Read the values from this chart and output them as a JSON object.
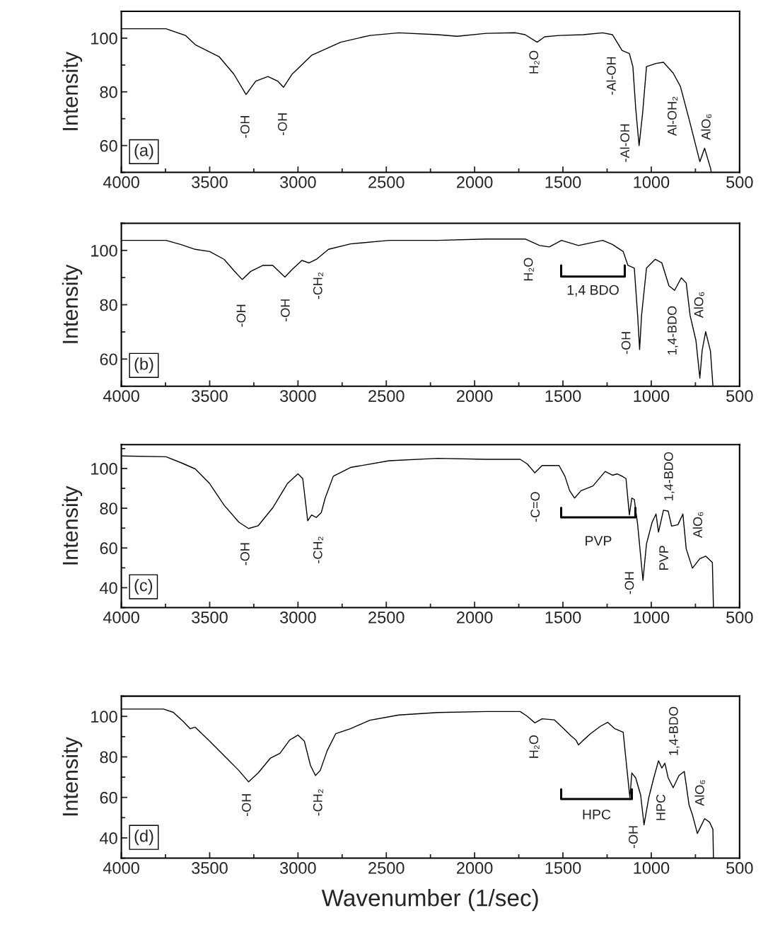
{
  "chart_data": [
    {
      "type": "line",
      "ylabel": "Intensity",
      "xlim": [
        4000,
        500
      ],
      "ylim": [
        50,
        110
      ],
      "xticks": [
        4000,
        3500,
        3000,
        2500,
        2000,
        1500,
        1000,
        500
      ],
      "yticks": [
        60,
        80,
        100
      ],
      "x": [
        4000,
        3747,
        3637,
        3582,
        3445,
        3363,
        3294,
        3239,
        3170,
        3115,
        3082,
        3033,
        2923,
        2758,
        2593,
        2429,
        2209,
        2099,
        1934,
        1769,
        1714,
        1659,
        1646,
        1604,
        1522,
        1385,
        1275,
        1220,
        1165,
        1124,
        1104,
        1088,
        1069,
        1049,
        1027,
        973,
        931,
        876,
        835,
        780,
        725,
        698,
        665,
        660
      ],
      "series": [
        {
          "color": "#000000",
          "values": [
            103.5,
            103.5,
            101,
            97.6,
            93,
            86.6,
            79,
            84,
            85.7,
            84,
            81.7,
            86.6,
            93.6,
            98.5,
            101,
            102,
            101.3,
            100.7,
            101.8,
            102,
            101.3,
            99,
            98.5,
            100.5,
            101,
            101.3,
            102,
            101.3,
            95.4,
            94.3,
            89.4,
            73.8,
            60,
            72,
            89.4,
            90.6,
            91,
            87,
            82,
            68.3,
            54,
            59,
            51.7,
            50
          ]
        }
      ],
      "annotations": [
        "(a)",
        "-OH",
        "-OH",
        "H₂O",
        "-Al-OH",
        "-Al-OH",
        "Al-OH₂",
        "AlO₆"
      ]
    },
    {
      "type": "line",
      "ylabel": "Intensity",
      "xlim": [
        4000,
        500
      ],
      "ylim": [
        50,
        110
      ],
      "xticks": [
        4000,
        3500,
        3000,
        2500,
        2000,
        1500,
        1000,
        500
      ],
      "yticks": [
        60,
        80,
        100
      ],
      "x": [
        4000,
        3747,
        3665,
        3582,
        3500,
        3418,
        3363,
        3316,
        3267,
        3198,
        3143,
        3074,
        3033,
        2978,
        2937,
        2896,
        2827,
        2703,
        2484,
        2209,
        1934,
        1714,
        1632,
        1577,
        1508,
        1412,
        1275,
        1220,
        1159,
        1132,
        1096,
        1077,
        1066,
        1055,
        1027,
        978,
        940,
        900,
        868,
        830,
        802,
        780,
        747,
        725,
        712,
        692,
        665,
        651
      ],
      "series": [
        {
          "color": "#000000",
          "values": [
            103.7,
            103.7,
            102.2,
            100.4,
            99.6,
            96.7,
            92.6,
            89.3,
            92.3,
            94.5,
            94.5,
            90.2,
            93,
            96.3,
            95.4,
            96.7,
            100.4,
            102.4,
            103.7,
            103.7,
            104.2,
            104.2,
            101.8,
            101.3,
            103.7,
            101.8,
            103.7,
            102.2,
            99.6,
            94.5,
            93.5,
            76,
            63.5,
            76,
            93.5,
            96.7,
            95.4,
            87,
            85.3,
            89.9,
            88,
            76,
            66.8,
            53,
            63.1,
            70.1,
            63,
            50.2
          ]
        }
      ],
      "annotations": [
        "(b)",
        "-OH",
        "-OH",
        "-CH₂",
        "1,4 BDO",
        "H₂O",
        "-OH",
        "1,4-BDO",
        "AlO₆"
      ]
    },
    {
      "type": "line",
      "ylabel": "Intensity",
      "xlim": [
        4000,
        500
      ],
      "ylim": [
        30,
        112
      ],
      "xticks": [
        4000,
        3500,
        3000,
        2500,
        2000,
        1500,
        1000,
        500
      ],
      "yticks": [
        40,
        60,
        80,
        100
      ],
      "x": [
        4000,
        3747,
        3665,
        3582,
        3500,
        3418,
        3335,
        3280,
        3225,
        3143,
        3060,
        3000,
        2973,
        2945,
        2923,
        2896,
        2868,
        2846,
        2800,
        2703,
        2484,
        2209,
        1934,
        1742,
        1701,
        1659,
        1618,
        1522,
        1489,
        1462,
        1434,
        1398,
        1330,
        1261,
        1220,
        1192,
        1165,
        1143,
        1124,
        1110,
        1096,
        1077,
        1060,
        1047,
        1027,
        995,
        973,
        959,
        931,
        904,
        885,
        849,
        821,
        802,
        767,
        725,
        692,
        654,
        648
      ],
      "series": [
        {
          "color": "#000000",
          "values": [
            106.3,
            105.9,
            103,
            99.8,
            92.4,
            81.5,
            73,
            69.8,
            71.2,
            80.2,
            92.4,
            97.3,
            94.9,
            73.7,
            76.6,
            75.4,
            77.8,
            85.1,
            96.1,
            100.5,
            103.9,
            105.1,
            104.6,
            104.6,
            102.2,
            97.8,
            101.5,
            101.5,
            96.1,
            88.8,
            85.1,
            88.8,
            91.2,
            98.5,
            96.6,
            97.3,
            96.1,
            94.9,
            76.6,
            85.1,
            84.4,
            71.7,
            55.9,
            43.7,
            62.1,
            73,
            77.1,
            68,
            79,
            78.5,
            71,
            71.7,
            77.1,
            59.5,
            49.8,
            54.6,
            55.9,
            52.7,
            30
          ]
        }
      ],
      "annotations": [
        "(c)",
        "-OH",
        "-CH₂",
        "-C=O",
        "PVP",
        "-OH",
        "PVP",
        "1,4-BDO",
        "AlO₆"
      ]
    },
    {
      "type": "line",
      "xlabel": "Wavenumber (1/sec)",
      "ylabel": "Intensity",
      "xlim": [
        4000,
        500
      ],
      "ylim": [
        30,
        110
      ],
      "xticks": [
        4000,
        3500,
        3000,
        2500,
        2000,
        1500,
        1000,
        500
      ],
      "yticks": [
        40,
        60,
        80,
        100
      ],
      "x": [
        4000,
        3761,
        3706,
        3651,
        3610,
        3582,
        3500,
        3418,
        3335,
        3280,
        3225,
        3157,
        3102,
        3047,
        3000,
        2964,
        2929,
        2901,
        2874,
        2835,
        2786,
        2703,
        2593,
        2429,
        2209,
        1934,
        1742,
        1701,
        1659,
        1618,
        1549,
        1495,
        1453,
        1426,
        1412,
        1390,
        1343,
        1288,
        1247,
        1206,
        1159,
        1137,
        1121,
        1110,
        1088,
        1060,
        1041,
        1014,
        986,
        959,
        940,
        923,
        904,
        876,
        843,
        813,
        786,
        767,
        739,
        698,
        670,
        651,
        648
      ],
      "series": [
        {
          "color": "#000000",
          "values": [
            103.6,
            103.6,
            102,
            97.6,
            93.9,
            94.7,
            87.8,
            80.6,
            73.3,
            67.7,
            72.1,
            79.3,
            81.8,
            88.3,
            90.8,
            87.8,
            75.7,
            70.8,
            73.3,
            83,
            91.5,
            93.9,
            98.1,
            100.7,
            101.9,
            102.4,
            102.4,
            100,
            96.8,
            98.8,
            98.3,
            93.9,
            90.3,
            88.3,
            85.9,
            87.8,
            91.5,
            95.1,
            97.1,
            93.9,
            92.2,
            73.3,
            59.9,
            72.1,
            69.6,
            61.1,
            46.5,
            59.9,
            69.6,
            78.1,
            74.5,
            76.9,
            69.6,
            64.8,
            70.8,
            72.8,
            56.3,
            51.4,
            42.2,
            49.5,
            47.8,
            44.2,
            30
          ]
        }
      ],
      "annotations": [
        "(d)",
        "-OH",
        "-CH₂",
        "H₂O",
        "HPC",
        "-OH",
        "HPC",
        "1,4-BDO",
        "AlO₆"
      ]
    }
  ]
}
